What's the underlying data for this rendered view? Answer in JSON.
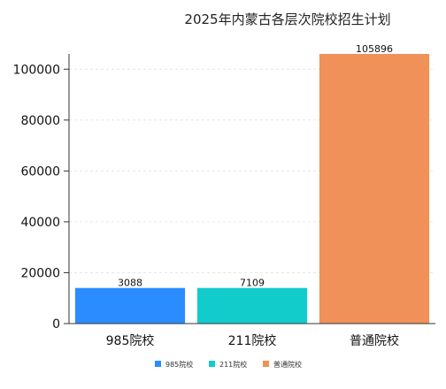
{
  "chart_data": {
    "type": "bar",
    "title": "2025年内蒙古各层次院校招生计划",
    "categories": [
      "985院校",
      "211院校",
      "普通院校"
    ],
    "values": [
      3088,
      7109,
      105896
    ],
    "bar_heights_as_drawn": [
      14000,
      14000,
      106000
    ],
    "colors": [
      "#2b8cff",
      "#12cccc",
      "#f0915a"
    ],
    "ylim": [
      0,
      106000
    ],
    "yticks": [
      0,
      20000,
      40000,
      60000,
      80000,
      100000
    ],
    "grid": true,
    "legend": {
      "position": "bottom",
      "items": [
        {
          "label": "985院校",
          "color": "#2b8cff"
        },
        {
          "label": "211院校",
          "color": "#12cccc"
        },
        {
          "label": "普通院校",
          "color": "#f0915a"
        }
      ]
    }
  }
}
